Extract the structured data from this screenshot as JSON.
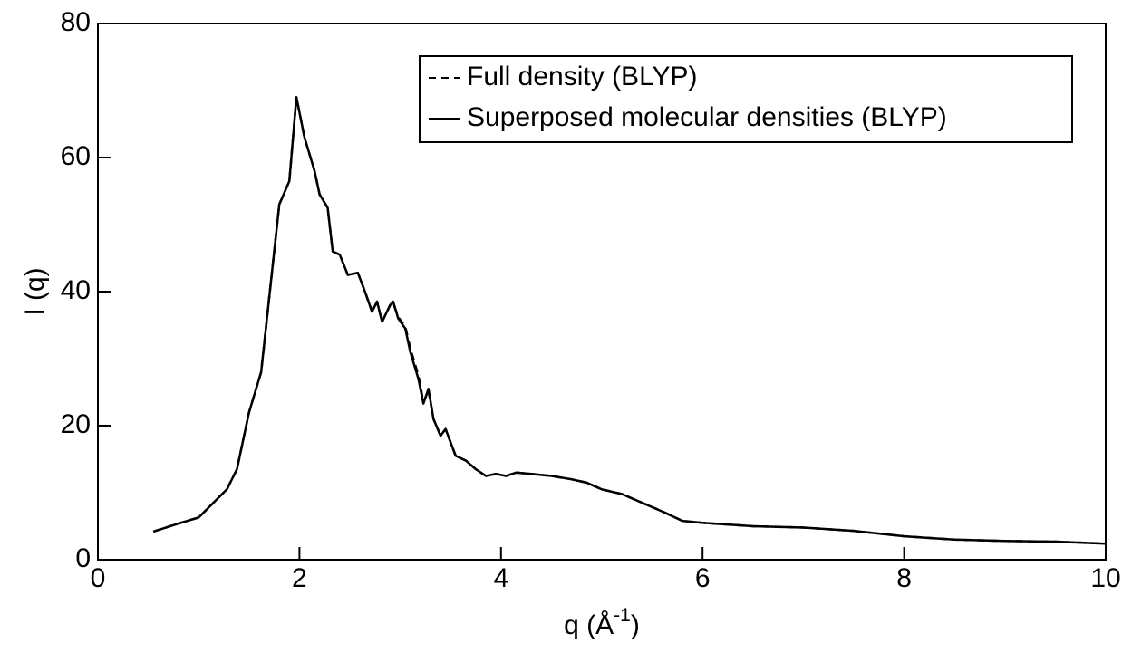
{
  "chart_data": {
    "type": "line",
    "ylabel": "I (q)",
    "xlabel": {
      "base": "q (Å",
      "superscript": "-1",
      "close": ")"
    },
    "xlim": [
      0,
      10
    ],
    "xticks": [
      0,
      2,
      4,
      6,
      8,
      10
    ],
    "ylim": [
      0,
      80
    ],
    "yticks": [
      0,
      20,
      40,
      60,
      80
    ],
    "legend": "top-right",
    "x": [
      0.55,
      0.8,
      1.0,
      1.28,
      1.38,
      1.5,
      1.62,
      1.8,
      1.9,
      1.97,
      2.05,
      2.15,
      2.2,
      2.28,
      2.33,
      2.4,
      2.48,
      2.58,
      2.65,
      2.72,
      2.77,
      2.82,
      2.9,
      2.93,
      2.98,
      3.05,
      3.1,
      3.18,
      3.23,
      3.28,
      3.33,
      3.4,
      3.45,
      3.55,
      3.65,
      3.75,
      3.85,
      3.95,
      4.05,
      4.15,
      4.3,
      4.5,
      4.7,
      4.85,
      5.0,
      5.2,
      5.4,
      5.6,
      5.8,
      6.0,
      6.5,
      7.0,
      7.5,
      8.0,
      8.5,
      9.0,
      9.5,
      10.0
    ],
    "series": [
      {
        "name": "Full density (BLYP)",
        "color": "#000000",
        "linestyle": "dashed",
        "values": [
          4.2,
          5.4,
          6.3,
          10.5,
          13.5,
          22,
          28,
          53,
          56.5,
          69,
          63,
          58,
          54.5,
          52.5,
          46,
          45.5,
          42.5,
          42.8,
          40,
          37,
          38.5,
          35.5,
          38,
          38.3,
          36.2,
          34.8,
          31.5,
          27.5,
          23.5,
          25.2,
          21,
          18.5,
          19.5,
          15.5,
          14.8,
          13.5,
          12.5,
          12.8,
          12.5,
          13,
          12.8,
          12.5,
          12,
          11.5,
          10.5,
          9.8,
          8.5,
          7.2,
          5.8,
          5.5,
          5.0,
          4.8,
          4.3,
          3.5,
          3.0,
          2.8,
          2.7,
          2.4
        ]
      },
      {
        "name": "Superposed molecular densities (BLYP)",
        "color": "#000000",
        "linestyle": "solid",
        "values": [
          4.2,
          5.4,
          6.3,
          10.5,
          13.5,
          22,
          28,
          53,
          56.5,
          69,
          63,
          58,
          54.5,
          52.5,
          46,
          45.5,
          42.5,
          42.8,
          40,
          37,
          38.5,
          35.5,
          38,
          38.5,
          36,
          34.5,
          31,
          27,
          23.3,
          25.5,
          21,
          18.5,
          19.5,
          15.5,
          14.8,
          13.5,
          12.5,
          12.8,
          12.5,
          13,
          12.8,
          12.5,
          12,
          11.5,
          10.5,
          9.8,
          8.5,
          7.2,
          5.8,
          5.5,
          5.0,
          4.8,
          4.3,
          3.5,
          3.0,
          2.8,
          2.7,
          2.4
        ]
      }
    ]
  }
}
